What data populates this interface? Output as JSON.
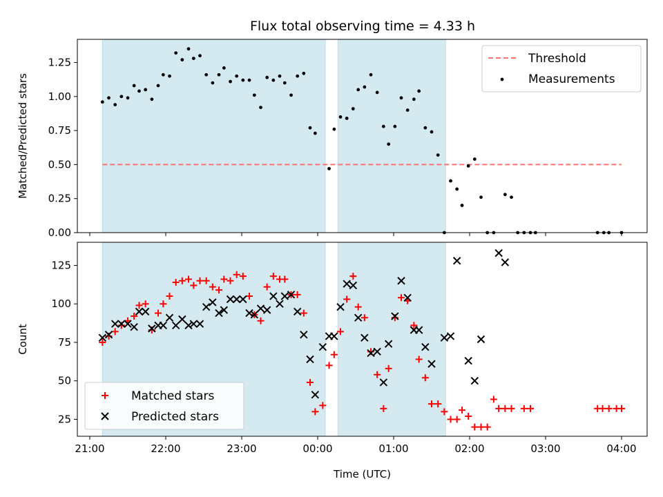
{
  "title": "Flux total observing time = 4.33 h",
  "colors": {
    "threshold": "#ff7070",
    "measurement": "#000000",
    "matched": "#ff0000",
    "predicted": "#000000",
    "shade": "#d5eaf0",
    "shade_edge": "#b8dde8"
  },
  "chart_data": [
    {
      "type": "scatter",
      "ylabel": "Matched/Predicted stars",
      "ylim": [
        0,
        1.42
      ],
      "yticks": [
        0.0,
        0.25,
        0.5,
        0.75,
        1.0,
        1.25
      ],
      "ytick_labels": [
        "0.00",
        "0.25",
        "0.50",
        "0.75",
        "1.00",
        "1.25"
      ],
      "xlim": [
        "21:00",
        "04:00"
      ],
      "xticks": [
        "21:00",
        "22:00",
        "23:00",
        "00:00",
        "01:00",
        "02:00",
        "03:00",
        "04:00"
      ],
      "legend": {
        "position": "top-right",
        "entries": [
          "Threshold",
          "Measurements"
        ]
      },
      "shaded_intervals": [
        [
          "21:10",
          "00:06"
        ],
        [
          "00:16",
          "01:41"
        ]
      ],
      "threshold": {
        "name": "Threshold",
        "value": 0.5,
        "x_range": [
          "21:10",
          "04:00"
        ]
      },
      "series": [
        {
          "name": "Measurements",
          "points": [
            [
              "21:10",
              0.96
            ],
            [
              "21:15",
              0.99
            ],
            [
              "21:20",
              0.94
            ],
            [
              "21:25",
              1.0
            ],
            [
              "21:30",
              0.99
            ],
            [
              "21:35",
              1.08
            ],
            [
              "21:39",
              1.04
            ],
            [
              "21:44",
              1.05
            ],
            [
              "21:49",
              0.98
            ],
            [
              "21:54",
              1.08
            ],
            [
              "21:58",
              1.16
            ],
            [
              "22:03",
              1.15
            ],
            [
              "22:08",
              1.32
            ],
            [
              "22:13",
              1.27
            ],
            [
              "22:18",
              1.35
            ],
            [
              "22:22",
              1.28
            ],
            [
              "22:27",
              1.3
            ],
            [
              "22:32",
              1.16
            ],
            [
              "22:37",
              1.1
            ],
            [
              "22:42",
              1.16
            ],
            [
              "22:46",
              1.21
            ],
            [
              "22:51",
              1.11
            ],
            [
              "22:56",
              1.15
            ],
            [
              "23:01",
              1.12
            ],
            [
              "23:06",
              1.12
            ],
            [
              "23:10",
              1.01
            ],
            [
              "23:15",
              0.92
            ],
            [
              "23:20",
              1.14
            ],
            [
              "23:25",
              1.12
            ],
            [
              "23:30",
              1.15
            ],
            [
              "23:34",
              1.1
            ],
            [
              "23:39",
              1.01
            ],
            [
              "23:44",
              1.15
            ],
            [
              "23:49",
              1.17
            ],
            [
              "23:54",
              0.77
            ],
            [
              "23:58",
              0.73
            ],
            [
              "00:09",
              0.47
            ],
            [
              "00:13",
              0.76
            ],
            [
              "00:18",
              0.85
            ],
            [
              "00:23",
              0.84
            ],
            [
              "00:28",
              0.91
            ],
            [
              "00:32",
              1.05
            ],
            [
              "00:37",
              1.07
            ],
            [
              "00:42",
              1.16
            ],
            [
              "00:47",
              1.03
            ],
            [
              "00:52",
              0.78
            ],
            [
              "00:56",
              0.65
            ],
            [
              "01:01",
              0.78
            ],
            [
              "01:06",
              0.99
            ],
            [
              "01:11",
              0.9
            ],
            [
              "01:16",
              0.98
            ],
            [
              "01:20",
              1.04
            ],
            [
              "01:25",
              0.77
            ],
            [
              "01:30",
              0.74
            ],
            [
              "01:35",
              0.57
            ],
            [
              "01:40",
              0.0
            ],
            [
              "01:45",
              0.38
            ],
            [
              "01:50",
              0.32
            ],
            [
              "01:54",
              0.2
            ],
            [
              "01:59",
              0.49
            ],
            [
              "02:04",
              0.54
            ],
            [
              "02:09",
              0.26
            ],
            [
              "02:14",
              0.0
            ],
            [
              "02:19",
              0.0
            ],
            [
              "02:28",
              0.28
            ],
            [
              "02:33",
              0.26
            ],
            [
              "02:38",
              0.0
            ],
            [
              "02:43",
              0.0
            ],
            [
              "02:48",
              0.0
            ],
            [
              "02:52",
              0.0
            ],
            [
              "03:41",
              0.0
            ],
            [
              "03:46",
              0.0
            ],
            [
              "03:50",
              0.0
            ],
            [
              "04:00",
              0.0
            ]
          ]
        }
      ]
    },
    {
      "type": "scatter",
      "xlabel": "Time (UTC)",
      "ylabel": "Count",
      "ylim": [
        14,
        140
      ],
      "yticks": [
        25,
        50,
        75,
        100,
        125
      ],
      "ytick_labels": [
        "25",
        "50",
        "75",
        "100",
        "125"
      ],
      "xlim": [
        "21:00",
        "04:00"
      ],
      "xticks": [
        "21:00",
        "22:00",
        "23:00",
        "00:00",
        "01:00",
        "02:00",
        "03:00",
        "04:00"
      ],
      "xtick_labels": [
        "21:00",
        "22:00",
        "23:00",
        "00:00",
        "01:00",
        "02:00",
        "03:00",
        "04:00"
      ],
      "legend": {
        "position": "bottom-left",
        "entries": [
          "Matched stars",
          "Predicted stars"
        ]
      },
      "shaded_intervals": [
        [
          "21:10",
          "00:06"
        ],
        [
          "00:16",
          "01:41"
        ]
      ],
      "series": [
        {
          "name": "Matched stars",
          "marker": "plus",
          "points": [
            [
              "21:10",
              75
            ],
            [
              "21:15",
              79
            ],
            [
              "21:20",
              82
            ],
            [
              "21:25",
              86
            ],
            [
              "21:30",
              89
            ],
            [
              "21:35",
              92
            ],
            [
              "21:39",
              99
            ],
            [
              "21:44",
              100
            ],
            [
              "21:49",
              83
            ],
            [
              "21:54",
              94
            ],
            [
              "21:58",
              100
            ],
            [
              "22:03",
              105
            ],
            [
              "22:08",
              114
            ],
            [
              "22:13",
              115
            ],
            [
              "22:18",
              116
            ],
            [
              "22:22",
              112
            ],
            [
              "22:27",
              115
            ],
            [
              "22:32",
              115
            ],
            [
              "22:37",
              111
            ],
            [
              "22:42",
              109
            ],
            [
              "22:46",
              116
            ],
            [
              "22:51",
              115
            ],
            [
              "22:56",
              119
            ],
            [
              "23:01",
              118
            ],
            [
              "23:06",
              105
            ],
            [
              "23:10",
              93
            ],
            [
              "23:15",
              89
            ],
            [
              "23:20",
              111
            ],
            [
              "23:25",
              118
            ],
            [
              "23:30",
              116
            ],
            [
              "23:34",
              116
            ],
            [
              "23:39",
              106
            ],
            [
              "23:44",
              106
            ],
            [
              "23:49",
              94
            ],
            [
              "23:54",
              49
            ],
            [
              "23:58",
              30
            ],
            [
              "00:04",
              34
            ],
            [
              "00:09",
              60
            ],
            [
              "00:13",
              67
            ],
            [
              "00:18",
              82
            ],
            [
              "00:23",
              103
            ],
            [
              "00:28",
              118
            ],
            [
              "00:32",
              98
            ],
            [
              "00:37",
              91
            ],
            [
              "00:42",
              69
            ],
            [
              "00:47",
              54
            ],
            [
              "00:52",
              32
            ],
            [
              "00:56",
              58
            ],
            [
              "01:01",
              91
            ],
            [
              "01:06",
              104
            ],
            [
              "01:11",
              102
            ],
            [
              "01:16",
              86
            ],
            [
              "01:20",
              64
            ],
            [
              "01:25",
              52
            ],
            [
              "01:30",
              35
            ],
            [
              "01:35",
              35
            ],
            [
              "01:40",
              30
            ],
            [
              "01:45",
              25
            ],
            [
              "01:50",
              25
            ],
            [
              "01:54",
              31
            ],
            [
              "01:59",
              27
            ],
            [
              "02:04",
              20
            ],
            [
              "02:09",
              20
            ],
            [
              "02:14",
              20
            ],
            [
              "02:19",
              38
            ],
            [
              "02:23",
              32
            ],
            [
              "02:28",
              32
            ],
            [
              "02:33",
              32
            ],
            [
              "02:43",
              32
            ],
            [
              "02:48",
              32
            ],
            [
              "03:41",
              32
            ],
            [
              "03:45",
              32
            ],
            [
              "03:50",
              32
            ],
            [
              "03:56",
              32
            ],
            [
              "04:00",
              32
            ]
          ]
        },
        {
          "name": "Predicted stars",
          "marker": "x",
          "points": [
            [
              "21:10",
              78
            ],
            [
              "21:15",
              80
            ],
            [
              "21:20",
              87
            ],
            [
              "21:25",
              87
            ],
            [
              "21:30",
              87
            ],
            [
              "21:35",
              85
            ],
            [
              "21:39",
              95
            ],
            [
              "21:44",
              95
            ],
            [
              "21:49",
              84
            ],
            [
              "21:54",
              86
            ],
            [
              "21:58",
              86
            ],
            [
              "22:03",
              91
            ],
            [
              "22:08",
              86
            ],
            [
              "22:13",
              90
            ],
            [
              "22:18",
              86
            ],
            [
              "22:22",
              87
            ],
            [
              "22:27",
              87
            ],
            [
              "22:32",
              98
            ],
            [
              "22:37",
              101
            ],
            [
              "22:42",
              94
            ],
            [
              "22:46",
              96
            ],
            [
              "22:51",
              103
            ],
            [
              "22:56",
              103
            ],
            [
              "23:01",
              103
            ],
            [
              "23:06",
              94
            ],
            [
              "23:10",
              93
            ],
            [
              "23:15",
              97
            ],
            [
              "23:20",
              96
            ],
            [
              "23:25",
              105
            ],
            [
              "23:30",
              100
            ],
            [
              "23:34",
              105
            ],
            [
              "23:39",
              106
            ],
            [
              "23:44",
              95
            ],
            [
              "23:49",
              80
            ],
            [
              "23:54",
              64
            ],
            [
              "23:58",
              41
            ],
            [
              "00:04",
              72
            ],
            [
              "00:09",
              79
            ],
            [
              "00:13",
              79
            ],
            [
              "00:18",
              98
            ],
            [
              "00:23",
              113
            ],
            [
              "00:28",
              112
            ],
            [
              "00:32",
              91
            ],
            [
              "00:37",
              78
            ],
            [
              "00:42",
              68
            ],
            [
              "00:47",
              69
            ],
            [
              "00:52",
              49
            ],
            [
              "00:56",
              74
            ],
            [
              "01:01",
              92
            ],
            [
              "01:06",
              115
            ],
            [
              "01:11",
              104
            ],
            [
              "01:16",
              83
            ],
            [
              "01:20",
              83
            ],
            [
              "01:25",
              72
            ],
            [
              "01:30",
              61
            ],
            [
              "01:50",
              128
            ],
            [
              "01:40",
              78
            ],
            [
              "01:45",
              79
            ],
            [
              "01:59",
              63
            ],
            [
              "02:04",
              50
            ],
            [
              "02:09",
              77
            ],
            [
              "02:23",
              133
            ],
            [
              "02:28",
              127
            ]
          ]
        }
      ]
    }
  ]
}
